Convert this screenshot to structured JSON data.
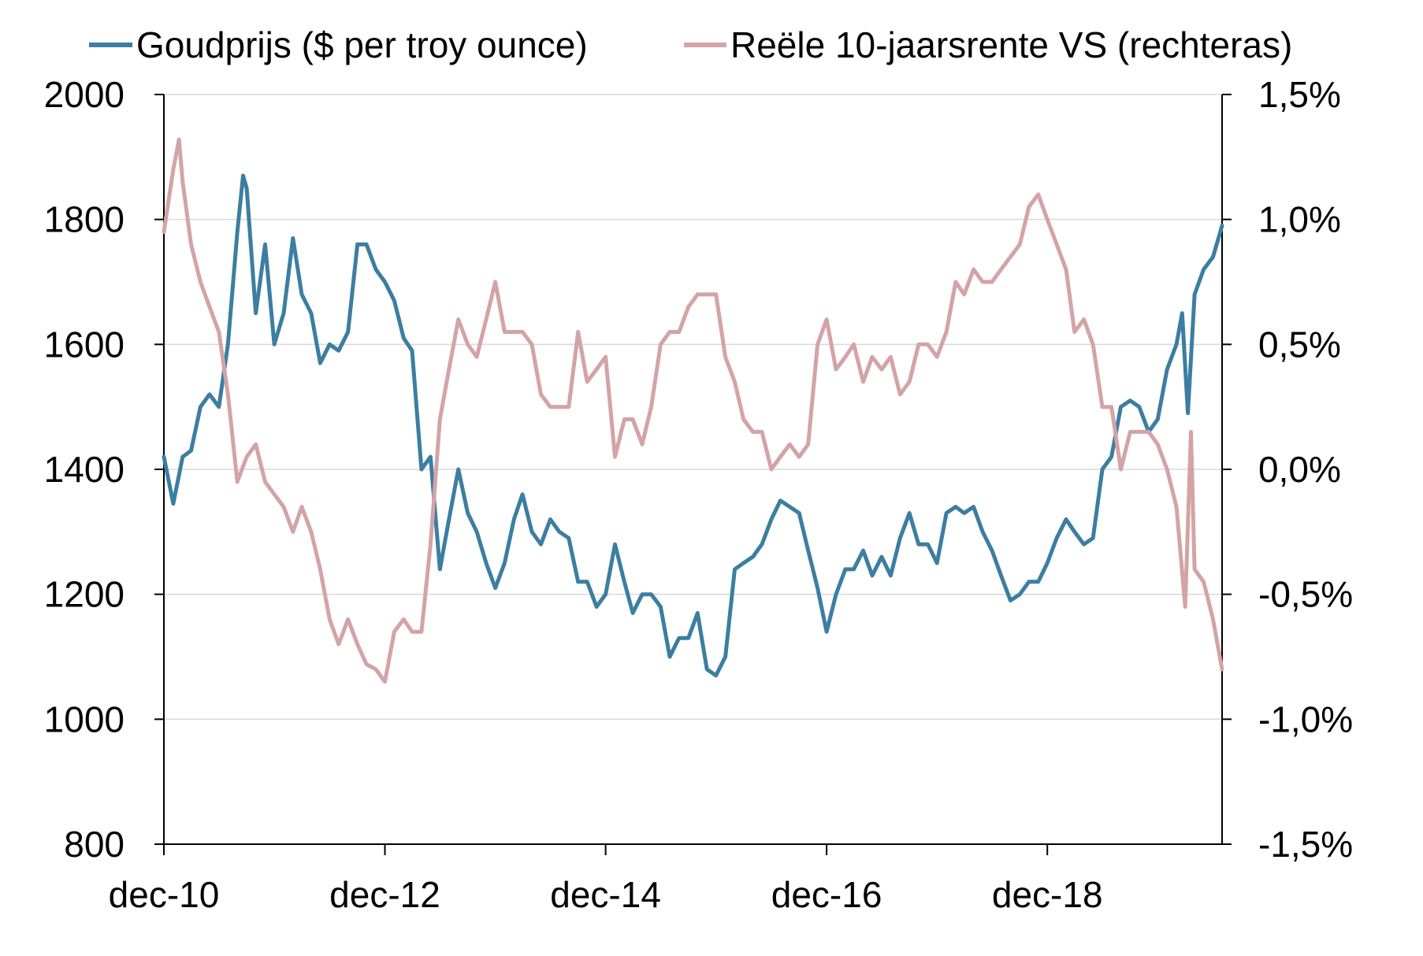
{
  "chart_data": {
    "type": "line",
    "title": "",
    "xlabel": "",
    "ylabel": "",
    "y2label": "",
    "x_range": [
      "2010-12",
      "2020-07"
    ],
    "x_ticks": [
      "2010-12",
      "2012-12",
      "2014-12",
      "2016-12",
      "2018-12"
    ],
    "x_tick_labels": [
      "dec-10",
      "dec-12",
      "dec-14",
      "dec-16",
      "dec-18"
    ],
    "ylim": [
      800,
      2000
    ],
    "y_ticks": [
      800,
      1000,
      1200,
      1400,
      1600,
      1800,
      2000
    ],
    "y_tick_labels": [
      "800",
      "1000",
      "1200",
      "1400",
      "1600",
      "1800",
      "2000"
    ],
    "y2lim": [
      -1.5,
      1.5
    ],
    "y2_ticks": [
      -1.5,
      -1.0,
      -0.5,
      0.0,
      0.5,
      1.0,
      1.5
    ],
    "y2_tick_labels": [
      "-1,5%",
      "-1,0%",
      "-0,5%",
      "0,0%",
      "0,5%",
      "1,0%",
      "1,5%"
    ],
    "grid": true,
    "legend_position": "top",
    "series": [
      {
        "name": "Goudprijs ($ per troy ounce)",
        "axis": "left",
        "color": "#3c7ea1",
        "points": [
          [
            "2010-12-01",
            1420
          ],
          [
            "2011-01-01",
            1345
          ],
          [
            "2011-02-01",
            1420
          ],
          [
            "2011-03-01",
            1430
          ],
          [
            "2011-04-01",
            1500
          ],
          [
            "2011-05-01",
            1520
          ],
          [
            "2011-06-01",
            1500
          ],
          [
            "2011-07-01",
            1600
          ],
          [
            "2011-08-01",
            1780
          ],
          [
            "2011-08-20",
            1870
          ],
          [
            "2011-09-01",
            1850
          ],
          [
            "2011-10-01",
            1650
          ],
          [
            "2011-11-01",
            1760
          ],
          [
            "2011-12-01",
            1600
          ],
          [
            "2012-01-01",
            1650
          ],
          [
            "2012-02-01",
            1770
          ],
          [
            "2012-03-01",
            1680
          ],
          [
            "2012-04-01",
            1650
          ],
          [
            "2012-05-01",
            1570
          ],
          [
            "2012-06-01",
            1600
          ],
          [
            "2012-07-01",
            1590
          ],
          [
            "2012-08-01",
            1620
          ],
          [
            "2012-09-01",
            1760
          ],
          [
            "2012-10-01",
            1760
          ],
          [
            "2012-11-01",
            1720
          ],
          [
            "2012-12-01",
            1700
          ],
          [
            "2013-01-01",
            1670
          ],
          [
            "2013-02-01",
            1610
          ],
          [
            "2013-03-01",
            1590
          ],
          [
            "2013-04-01",
            1400
          ],
          [
            "2013-05-01",
            1420
          ],
          [
            "2013-06-01",
            1240
          ],
          [
            "2013-07-01",
            1320
          ],
          [
            "2013-08-01",
            1400
          ],
          [
            "2013-09-01",
            1330
          ],
          [
            "2013-10-01",
            1300
          ],
          [
            "2013-11-01",
            1250
          ],
          [
            "2013-12-01",
            1210
          ],
          [
            "2014-01-01",
            1250
          ],
          [
            "2014-02-01",
            1320
          ],
          [
            "2014-03-01",
            1360
          ],
          [
            "2014-04-01",
            1300
          ],
          [
            "2014-05-01",
            1280
          ],
          [
            "2014-06-01",
            1320
          ],
          [
            "2014-07-01",
            1300
          ],
          [
            "2014-08-01",
            1290
          ],
          [
            "2014-09-01",
            1220
          ],
          [
            "2014-10-01",
            1220
          ],
          [
            "2014-11-01",
            1180
          ],
          [
            "2014-12-01",
            1200
          ],
          [
            "2015-01-01",
            1280
          ],
          [
            "2015-02-01",
            1220
          ],
          [
            "2015-03-01",
            1170
          ],
          [
            "2015-04-01",
            1200
          ],
          [
            "2015-05-01",
            1200
          ],
          [
            "2015-06-01",
            1180
          ],
          [
            "2015-07-01",
            1100
          ],
          [
            "2015-08-01",
            1130
          ],
          [
            "2015-09-01",
            1130
          ],
          [
            "2015-10-01",
            1170
          ],
          [
            "2015-11-01",
            1080
          ],
          [
            "2015-12-01",
            1070
          ],
          [
            "2016-01-01",
            1100
          ],
          [
            "2016-02-01",
            1240
          ],
          [
            "2016-03-01",
            1250
          ],
          [
            "2016-04-01",
            1260
          ],
          [
            "2016-05-01",
            1280
          ],
          [
            "2016-06-01",
            1320
          ],
          [
            "2016-07-01",
            1350
          ],
          [
            "2016-08-01",
            1340
          ],
          [
            "2016-09-01",
            1330
          ],
          [
            "2016-10-01",
            1270
          ],
          [
            "2016-11-01",
            1210
          ],
          [
            "2016-12-01",
            1140
          ],
          [
            "2017-01-01",
            1200
          ],
          [
            "2017-02-01",
            1240
          ],
          [
            "2017-03-01",
            1240
          ],
          [
            "2017-04-01",
            1270
          ],
          [
            "2017-05-01",
            1230
          ],
          [
            "2017-06-01",
            1260
          ],
          [
            "2017-07-01",
            1230
          ],
          [
            "2017-08-01",
            1290
          ],
          [
            "2017-09-01",
            1330
          ],
          [
            "2017-10-01",
            1280
          ],
          [
            "2017-11-01",
            1280
          ],
          [
            "2017-12-01",
            1250
          ],
          [
            "2018-01-01",
            1330
          ],
          [
            "2018-02-01",
            1340
          ],
          [
            "2018-03-01",
            1330
          ],
          [
            "2018-04-01",
            1340
          ],
          [
            "2018-05-01",
            1300
          ],
          [
            "2018-06-01",
            1270
          ],
          [
            "2018-07-01",
            1230
          ],
          [
            "2018-08-01",
            1190
          ],
          [
            "2018-09-01",
            1200
          ],
          [
            "2018-10-01",
            1220
          ],
          [
            "2018-11-01",
            1220
          ],
          [
            "2018-12-01",
            1250
          ],
          [
            "2019-01-01",
            1290
          ],
          [
            "2019-02-01",
            1320
          ],
          [
            "2019-03-01",
            1300
          ],
          [
            "2019-04-01",
            1280
          ],
          [
            "2019-05-01",
            1290
          ],
          [
            "2019-06-01",
            1400
          ],
          [
            "2019-07-01",
            1420
          ],
          [
            "2019-08-01",
            1500
          ],
          [
            "2019-09-01",
            1510
          ],
          [
            "2019-10-01",
            1500
          ],
          [
            "2019-11-01",
            1460
          ],
          [
            "2019-12-01",
            1480
          ],
          [
            "2020-01-01",
            1560
          ],
          [
            "2020-02-01",
            1600
          ],
          [
            "2020-02-20",
            1650
          ],
          [
            "2020-03-10",
            1490
          ],
          [
            "2020-04-01",
            1680
          ],
          [
            "2020-05-01",
            1720
          ],
          [
            "2020-06-01",
            1740
          ],
          [
            "2020-07-01",
            1790
          ]
        ]
      },
      {
        "name": "Reële 10-jaarsrente VS (rechteras)",
        "axis": "right",
        "color": "#d4a3a6",
        "points": [
          [
            "2010-12-01",
            0.95
          ],
          [
            "2011-01-01",
            1.2
          ],
          [
            "2011-01-20",
            1.32
          ],
          [
            "2011-02-01",
            1.15
          ],
          [
            "2011-03-01",
            0.9
          ],
          [
            "2011-04-01",
            0.75
          ],
          [
            "2011-05-01",
            0.65
          ],
          [
            "2011-06-01",
            0.55
          ],
          [
            "2011-07-01",
            0.3
          ],
          [
            "2011-08-01",
            -0.05
          ],
          [
            "2011-09-01",
            0.05
          ],
          [
            "2011-10-01",
            0.1
          ],
          [
            "2011-11-01",
            -0.05
          ],
          [
            "2011-12-01",
            -0.1
          ],
          [
            "2012-01-01",
            -0.15
          ],
          [
            "2012-02-01",
            -0.25
          ],
          [
            "2012-03-01",
            -0.15
          ],
          [
            "2012-04-01",
            -0.25
          ],
          [
            "2012-05-01",
            -0.4
          ],
          [
            "2012-06-01",
            -0.6
          ],
          [
            "2012-07-01",
            -0.7
          ],
          [
            "2012-08-01",
            -0.6
          ],
          [
            "2012-09-01",
            -0.7
          ],
          [
            "2012-10-01",
            -0.78
          ],
          [
            "2012-11-01",
            -0.8
          ],
          [
            "2012-12-01",
            -0.85
          ],
          [
            "2013-01-01",
            -0.65
          ],
          [
            "2013-02-01",
            -0.6
          ],
          [
            "2013-03-01",
            -0.65
          ],
          [
            "2013-04-01",
            -0.65
          ],
          [
            "2013-05-01",
            -0.3
          ],
          [
            "2013-06-01",
            0.2
          ],
          [
            "2013-07-01",
            0.4
          ],
          [
            "2013-08-01",
            0.6
          ],
          [
            "2013-09-01",
            0.5
          ],
          [
            "2013-10-01",
            0.45
          ],
          [
            "2013-11-01",
            0.6
          ],
          [
            "2013-12-01",
            0.75
          ],
          [
            "2014-01-01",
            0.55
          ],
          [
            "2014-02-01",
            0.55
          ],
          [
            "2014-03-01",
            0.55
          ],
          [
            "2014-04-01",
            0.5
          ],
          [
            "2014-05-01",
            0.3
          ],
          [
            "2014-06-01",
            0.25
          ],
          [
            "2014-07-01",
            0.25
          ],
          [
            "2014-08-01",
            0.25
          ],
          [
            "2014-09-01",
            0.55
          ],
          [
            "2014-10-01",
            0.35
          ],
          [
            "2014-11-01",
            0.4
          ],
          [
            "2014-12-01",
            0.45
          ],
          [
            "2015-01-01",
            0.05
          ],
          [
            "2015-02-01",
            0.2
          ],
          [
            "2015-03-01",
            0.2
          ],
          [
            "2015-04-01",
            0.1
          ],
          [
            "2015-05-01",
            0.25
          ],
          [
            "2015-06-01",
            0.5
          ],
          [
            "2015-07-01",
            0.55
          ],
          [
            "2015-08-01",
            0.55
          ],
          [
            "2015-09-01",
            0.65
          ],
          [
            "2015-10-01",
            0.7
          ],
          [
            "2015-11-01",
            0.7
          ],
          [
            "2015-12-01",
            0.7
          ],
          [
            "2016-01-01",
            0.45
          ],
          [
            "2016-02-01",
            0.35
          ],
          [
            "2016-03-01",
            0.2
          ],
          [
            "2016-04-01",
            0.15
          ],
          [
            "2016-05-01",
            0.15
          ],
          [
            "2016-06-01",
            0.0
          ],
          [
            "2016-07-01",
            0.05
          ],
          [
            "2016-08-01",
            0.1
          ],
          [
            "2016-09-01",
            0.05
          ],
          [
            "2016-10-01",
            0.1
          ],
          [
            "2016-11-01",
            0.5
          ],
          [
            "2016-12-01",
            0.6
          ],
          [
            "2017-01-01",
            0.4
          ],
          [
            "2017-02-01",
            0.45
          ],
          [
            "2017-03-01",
            0.5
          ],
          [
            "2017-04-01",
            0.35
          ],
          [
            "2017-05-01",
            0.45
          ],
          [
            "2017-06-01",
            0.4
          ],
          [
            "2017-07-01",
            0.45
          ],
          [
            "2017-08-01",
            0.3
          ],
          [
            "2017-09-01",
            0.35
          ],
          [
            "2017-10-01",
            0.5
          ],
          [
            "2017-11-01",
            0.5
          ],
          [
            "2017-12-01",
            0.45
          ],
          [
            "2018-01-01",
            0.55
          ],
          [
            "2018-02-01",
            0.75
          ],
          [
            "2018-03-01",
            0.7
          ],
          [
            "2018-04-01",
            0.8
          ],
          [
            "2018-05-01",
            0.75
          ],
          [
            "2018-06-01",
            0.75
          ],
          [
            "2018-07-01",
            0.8
          ],
          [
            "2018-08-01",
            0.85
          ],
          [
            "2018-09-01",
            0.9
          ],
          [
            "2018-10-01",
            1.05
          ],
          [
            "2018-11-01",
            1.1
          ],
          [
            "2018-12-01",
            1.0
          ],
          [
            "2019-01-01",
            0.9
          ],
          [
            "2019-02-01",
            0.8
          ],
          [
            "2019-03-01",
            0.55
          ],
          [
            "2019-04-01",
            0.6
          ],
          [
            "2019-05-01",
            0.5
          ],
          [
            "2019-06-01",
            0.25
          ],
          [
            "2019-07-01",
            0.25
          ],
          [
            "2019-08-01",
            0.0
          ],
          [
            "2019-09-01",
            0.15
          ],
          [
            "2019-10-01",
            0.15
          ],
          [
            "2019-11-01",
            0.15
          ],
          [
            "2019-12-01",
            0.1
          ],
          [
            "2020-01-01",
            0.0
          ],
          [
            "2020-02-01",
            -0.15
          ],
          [
            "2020-03-01",
            -0.55
          ],
          [
            "2020-03-20",
            0.15
          ],
          [
            "2020-04-01",
            -0.4
          ],
          [
            "2020-05-01",
            -0.45
          ],
          [
            "2020-06-01",
            -0.6
          ],
          [
            "2020-07-01",
            -0.8
          ]
        ]
      }
    ]
  }
}
